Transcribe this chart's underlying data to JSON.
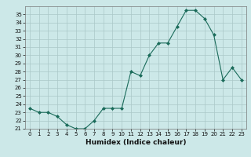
{
  "x": [
    0,
    1,
    2,
    3,
    4,
    5,
    6,
    7,
    8,
    9,
    10,
    11,
    12,
    13,
    14,
    15,
    16,
    17,
    18,
    19,
    20,
    21,
    22,
    23
  ],
  "y": [
    23.5,
    23.0,
    23.0,
    22.5,
    21.5,
    21.0,
    21.0,
    22.0,
    23.5,
    23.5,
    23.5,
    28.0,
    27.5,
    30.0,
    31.5,
    31.5,
    33.5,
    35.5,
    35.5,
    34.5,
    32.5,
    27.0,
    28.5,
    27.0
  ],
  "line_color": "#1a6b5a",
  "marker": "D",
  "marker_size": 2,
  "bg_color": "#cce8e8",
  "grid_color": "#aac8c8",
  "xlabel": "Humidex (Indice chaleur)",
  "ylim": [
    21,
    36
  ],
  "xlim": [
    -0.5,
    23.5
  ],
  "yticks": [
    21,
    22,
    23,
    24,
    25,
    26,
    27,
    28,
    29,
    30,
    31,
    32,
    33,
    34,
    35
  ],
  "xticks": [
    0,
    1,
    2,
    3,
    4,
    5,
    6,
    7,
    8,
    9,
    10,
    11,
    12,
    13,
    14,
    15,
    16,
    17,
    18,
    19,
    20,
    21,
    22,
    23
  ],
  "tick_fontsize": 5,
  "xlabel_fontsize": 6.5,
  "linewidth": 0.8
}
